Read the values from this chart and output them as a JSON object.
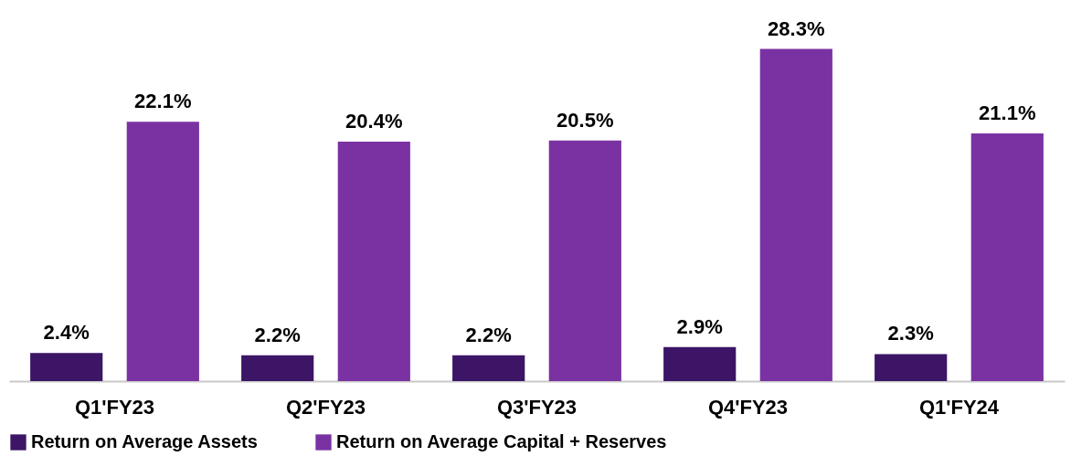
{
  "chart_data": {
    "type": "bar",
    "categories": [
      "Q1'FY23",
      "Q2'FY23",
      "Q3'FY23",
      "Q4'FY23",
      "Q1'FY24"
    ],
    "series": [
      {
        "name": "Return on Average Assets",
        "color": "#3c1566",
        "values": [
          2.4,
          2.2,
          2.2,
          2.9,
          2.3
        ],
        "value_labels": [
          "2.4%",
          "2.2%",
          "2.2%",
          "2.9%",
          "2.3%"
        ]
      },
      {
        "name": "Return on Average Capital + Reserves",
        "color": "#7a32a3",
        "values": [
          22.1,
          20.4,
          20.5,
          28.3,
          21.1
        ],
        "value_labels": [
          "22.1%",
          "20.4%",
          "20.5%",
          "28.3%",
          "21.1%"
        ]
      }
    ],
    "legend": "bottom"
  }
}
